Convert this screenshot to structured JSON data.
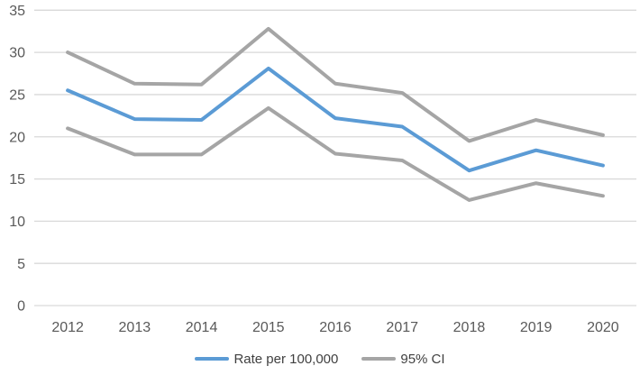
{
  "chart_data": {
    "type": "line",
    "categories": [
      "2012",
      "2013",
      "2014",
      "2015",
      "2016",
      "2017",
      "2018",
      "2019",
      "2020"
    ],
    "series": [
      {
        "name": "ci-upper-line",
        "label": "95% CI upper",
        "color": "#A5A5A5",
        "width": 4,
        "values": [
          30.0,
          26.3,
          26.2,
          32.8,
          26.3,
          25.2,
          19.5,
          22.0,
          20.2
        ]
      },
      {
        "name": "ci-lower-line",
        "label": "95% CI lower",
        "color": "#A5A5A5",
        "width": 4,
        "values": [
          21.0,
          17.9,
          17.9,
          23.4,
          18.0,
          17.2,
          12.5,
          14.5,
          13.0
        ]
      },
      {
        "name": "rate-line",
        "label": "Rate per 100,000",
        "color": "#5B9BD5",
        "width": 4,
        "values": [
          25.5,
          22.1,
          22.0,
          28.1,
          22.2,
          21.2,
          16.0,
          18.4,
          16.6
        ]
      }
    ],
    "legend": [
      {
        "label": "Rate per 100,000",
        "color": "#5B9BD5"
      },
      {
        "label": "95% CI",
        "color": "#A5A5A5"
      }
    ],
    "title": "",
    "xlabel": "",
    "ylabel": "",
    "ylim": [
      0,
      35
    ],
    "ytick_step": 5,
    "yticks": [
      "0",
      "5",
      "10",
      "15",
      "20",
      "25",
      "30",
      "35"
    ],
    "grid": true,
    "legend_position": "bottom",
    "colors": {
      "gridline": "#D9D9D9",
      "axis_text": "#595959",
      "background": "#FFFFFF"
    }
  }
}
